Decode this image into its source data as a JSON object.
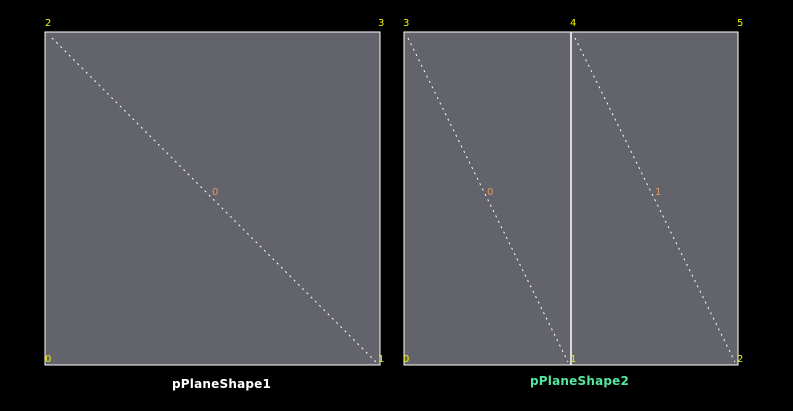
{
  "colors": {
    "background": "#000000",
    "face_fill": "#63636b",
    "edge": "#ffffff",
    "vertex_label": "#f2f200",
    "face_label": "#e89b5a",
    "shape_label_default": "#ffffff",
    "shape_label_selected": "#55e6a0"
  },
  "shapes": [
    {
      "name": "pPlaneShape1",
      "selected": false,
      "vertices": [
        "0",
        "1",
        "2",
        "3"
      ],
      "faces": [
        "0"
      ]
    },
    {
      "name": "pPlaneShape2",
      "selected": true,
      "vertices": [
        "0",
        "1",
        "2",
        "3",
        "4",
        "5"
      ],
      "faces": [
        "0",
        "1"
      ]
    }
  ]
}
